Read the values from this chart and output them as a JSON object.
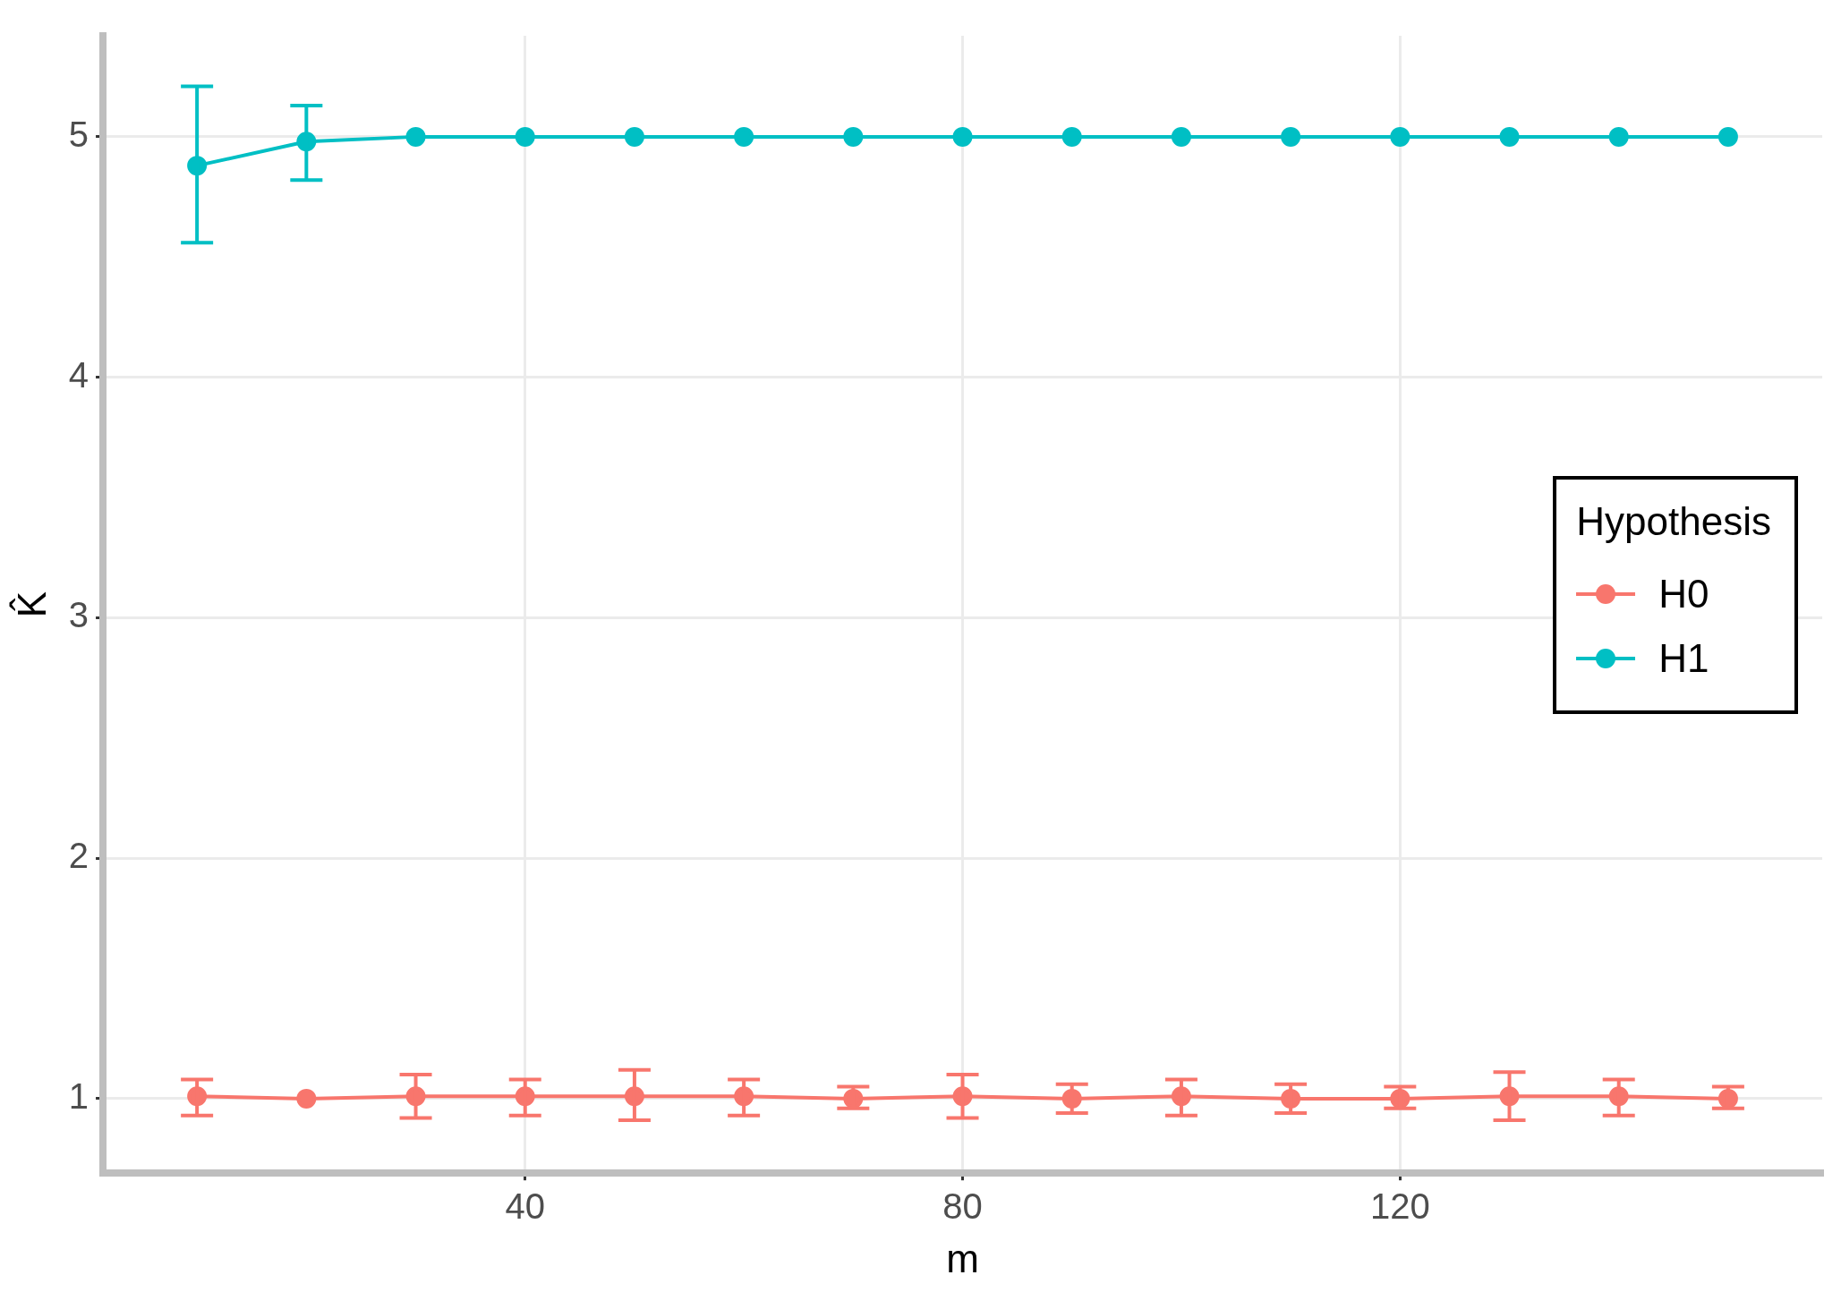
{
  "chart_data": {
    "type": "line",
    "xlabel": "m",
    "ylabel": "K̂",
    "legend_title": "Hypothesis",
    "legend": "right",
    "grid": true,
    "marker": "circle",
    "line_style": "solid",
    "xlim": [
      1.4,
      158.6
    ],
    "xticks": [
      40,
      80,
      120
    ],
    "ylim": [
      0.69,
      5.42
    ],
    "yticks": [
      1,
      2,
      3,
      4,
      5
    ],
    "series": [
      {
        "name": "H0",
        "color": "#f8766d",
        "x": [
          10,
          20,
          30,
          40,
          50,
          60,
          70,
          80,
          90,
          100,
          110,
          120,
          130,
          140,
          150
        ],
        "values": [
          1.01,
          1.0,
          1.01,
          1.01,
          1.01,
          1.01,
          1.0,
          1.01,
          1.0,
          1.01,
          1.0,
          1.0,
          1.01,
          1.01,
          1.0
        ],
        "errors": [
          [
            0.93,
            1.08
          ],
          null,
          [
            0.92,
            1.1
          ],
          [
            0.93,
            1.08
          ],
          [
            0.91,
            1.12
          ],
          [
            0.93,
            1.08
          ],
          [
            0.96,
            1.05
          ],
          [
            0.92,
            1.1
          ],
          [
            0.94,
            1.06
          ],
          [
            0.93,
            1.08
          ],
          [
            0.94,
            1.06
          ],
          [
            0.96,
            1.05
          ],
          [
            0.91,
            1.11
          ],
          [
            0.93,
            1.08
          ],
          [
            0.96,
            1.05
          ]
        ]
      },
      {
        "name": "H1",
        "color": "#00bfc4",
        "x": [
          10,
          20,
          30,
          40,
          50,
          60,
          70,
          80,
          90,
          100,
          110,
          120,
          130,
          140,
          150
        ],
        "values": [
          4.88,
          4.98,
          5,
          5,
          5,
          5,
          5,
          5,
          5,
          5,
          5,
          5,
          5,
          5,
          5
        ],
        "errors": [
          [
            4.56,
            5.21
          ],
          [
            4.82,
            5.13
          ],
          null,
          null,
          null,
          null,
          null,
          null,
          null,
          null,
          null,
          null,
          null,
          null,
          null
        ]
      }
    ]
  }
}
